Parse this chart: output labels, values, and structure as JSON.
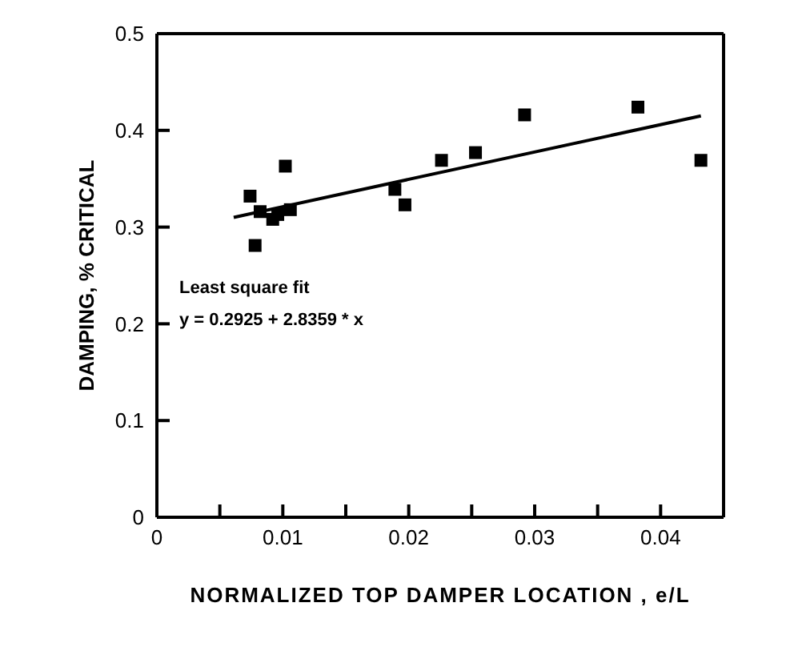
{
  "chart_data": {
    "type": "scatter",
    "xlabel": "NORMALIZED TOP DAMPER LOCATION , e/L",
    "ylabel": "DAMPING, % CRITICAL",
    "annotations": [
      "Least square fit",
      "y = 0.2925 + 2.8359 * x"
    ],
    "xlim": [
      0,
      0.045
    ],
    "ylim": [
      0,
      0.5
    ],
    "xticks": [
      0,
      {
        "value": 0.005,
        "label": null
      },
      0.01,
      {
        "value": 0.015,
        "label": null
      },
      0.02,
      {
        "value": 0.025,
        "label": null
      },
      0.03,
      {
        "value": 0.035,
        "label": null
      },
      0.04
    ],
    "yticks": [
      0,
      0.1,
      0.2,
      0.3,
      0.4,
      0.5
    ],
    "grid": false,
    "legend": false,
    "series": [
      {
        "color": "#000000",
        "marker": "square",
        "x": [
          0.0074,
          0.0078,
          0.0082,
          0.0092,
          0.0096,
          0.0102,
          0.0106,
          0.0189,
          0.0197,
          0.0226,
          0.0253,
          0.0292,
          0.0382,
          0.0432
        ],
        "values": [
          0.332,
          0.281,
          0.316,
          0.308,
          0.313,
          0.363,
          0.318,
          0.339,
          0.323,
          0.369,
          0.377,
          0.416,
          0.424,
          0.369
        ]
      },
      {
        "type": "line",
        "color": "#000000",
        "marker": "none",
        "line_style": "solid",
        "x": [
          0.0061,
          0.0432
        ],
        "values": [
          0.31,
          0.415
        ]
      }
    ]
  }
}
